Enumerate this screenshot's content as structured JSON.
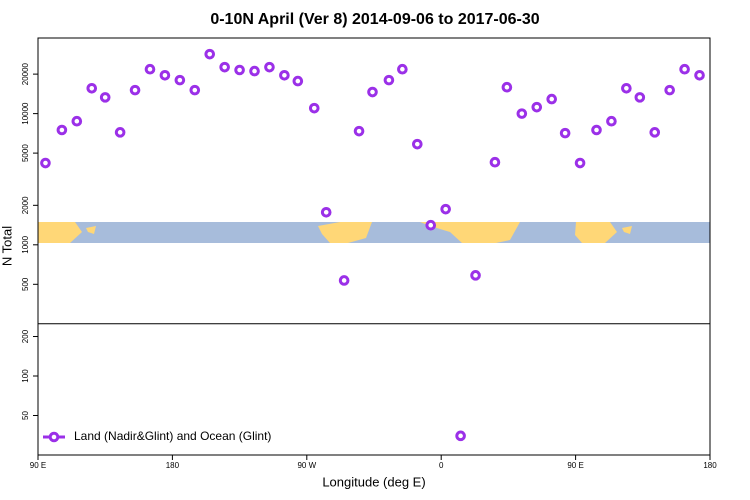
{
  "chart_data": {
    "type": "scatter",
    "title": "0-10N April (Ver 8)   2014-09-06 to 2017-06-30",
    "x_label": "Longitude (deg E)",
    "y_label": "N Total",
    "log_y": true,
    "xlim": [
      90,
      540
    ],
    "ylim": [
      25,
      37700
    ],
    "xticks": [
      {
        "value": 90,
        "label": "90 E"
      },
      180,
      {
        "value": 270,
        "label": "90 W"
      },
      {
        "value": 360,
        "label": "0"
      },
      {
        "value": 450,
        "label": "90 E"
      },
      {
        "value": 540,
        "label": "180"
      }
    ],
    "yticks": [
      50,
      100,
      200,
      500,
      1000,
      2000,
      5000,
      10000,
      20000
    ],
    "hline": 250,
    "legend": "bottom-left",
    "series": [
      {
        "name": "Land (Nadir&Glint) and Ocean (Glint)",
        "color": "#9b30e8",
        "x": [
          95,
          106,
          116,
          126,
          135,
          145,
          155,
          165,
          175,
          185,
          195,
          205,
          215,
          225,
          235,
          245,
          255,
          264,
          275,
          283,
          295,
          305,
          314,
          325,
          334,
          344,
          353,
          363,
          373,
          383,
          396,
          404,
          414,
          424,
          434,
          443,
          453,
          464,
          474,
          484,
          493,
          503,
          513,
          523,
          533
        ],
        "values": [
          4200,
          7500,
          8750,
          15600,
          13300,
          7200,
          15100,
          21800,
          19600,
          18000,
          15100,
          28400,
          22600,
          21500,
          21100,
          22600,
          19600,
          17700,
          11000,
          1770,
          535,
          7350,
          14600,
          18000,
          21800,
          5850,
          1410,
          1870,
          35,
          585,
          4260,
          15900,
          10000,
          11200,
          12900,
          7100,
          4200,
          7500,
          8750,
          15600,
          13300,
          7200,
          15100,
          21800,
          19600
        ]
      }
    ]
  }
}
